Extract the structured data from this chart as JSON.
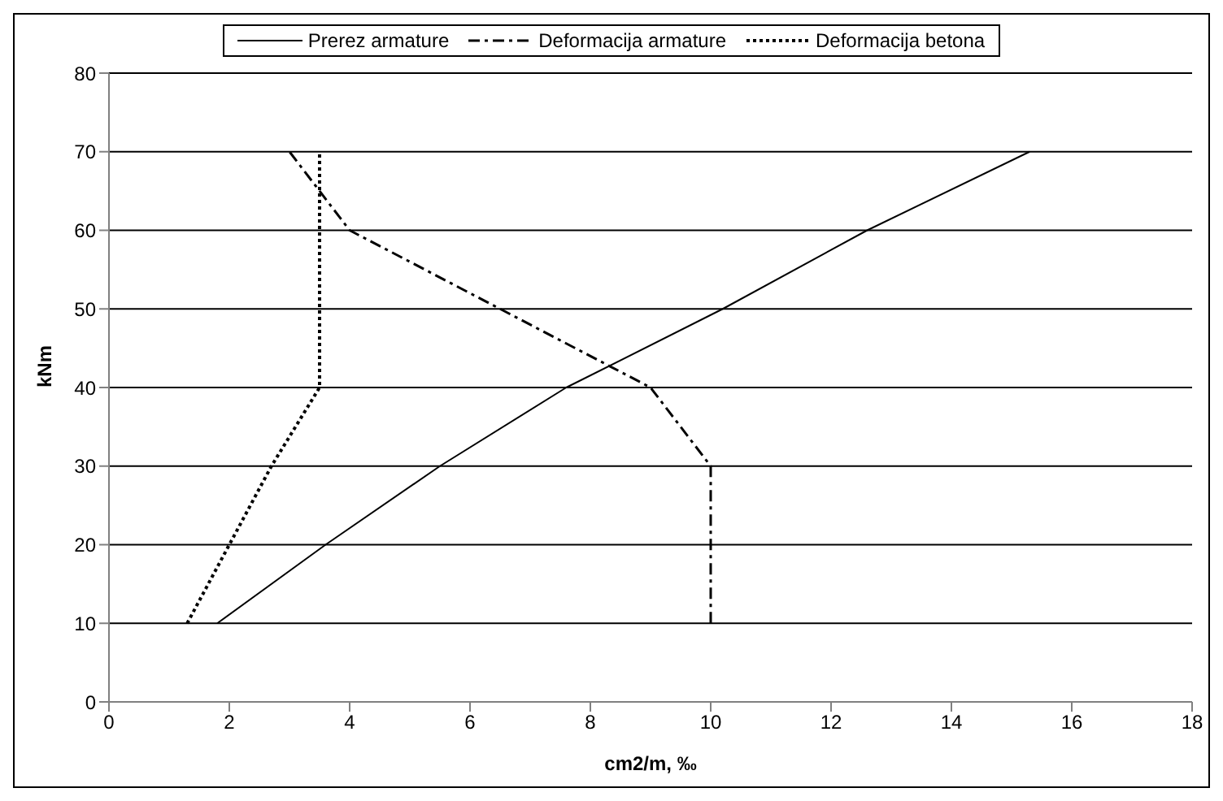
{
  "chart_data": {
    "type": "line",
    "xlabel": "cm2/m, ‰",
    "ylabel": "kNm",
    "xlim": [
      0,
      18
    ],
    "xticks": [
      0,
      2,
      4,
      6,
      8,
      10,
      12,
      14,
      16,
      18
    ],
    "ylim": [
      0,
      80
    ],
    "yticks": [
      0,
      10,
      20,
      30,
      40,
      50,
      60,
      70,
      80
    ],
    "grid": "y",
    "legend": "top",
    "marker": "none",
    "series": [
      {
        "name": "Prerez armature",
        "color": "#000000",
        "line_style": "solid",
        "x": [
          1.8,
          3.6,
          5.5,
          7.6,
          10.2,
          12.6,
          15.3
        ],
        "values": [
          10,
          20,
          30,
          40,
          50,
          60,
          70
        ]
      },
      {
        "name": "Deformacija armature",
        "color": "#000000",
        "line_style": "dashed",
        "x": [
          10,
          10,
          10,
          9,
          6.5,
          4,
          3
        ],
        "values": [
          10,
          20,
          30,
          40,
          50,
          60,
          70
        ]
      },
      {
        "name": "Deformacija betona",
        "color": "#000000",
        "line_style": "dotted",
        "x": [
          1.3,
          2.0,
          2.7,
          3.5,
          3.5,
          3.5,
          3.5
        ],
        "values": [
          10,
          20,
          30,
          40,
          50,
          60,
          70
        ]
      }
    ]
  }
}
